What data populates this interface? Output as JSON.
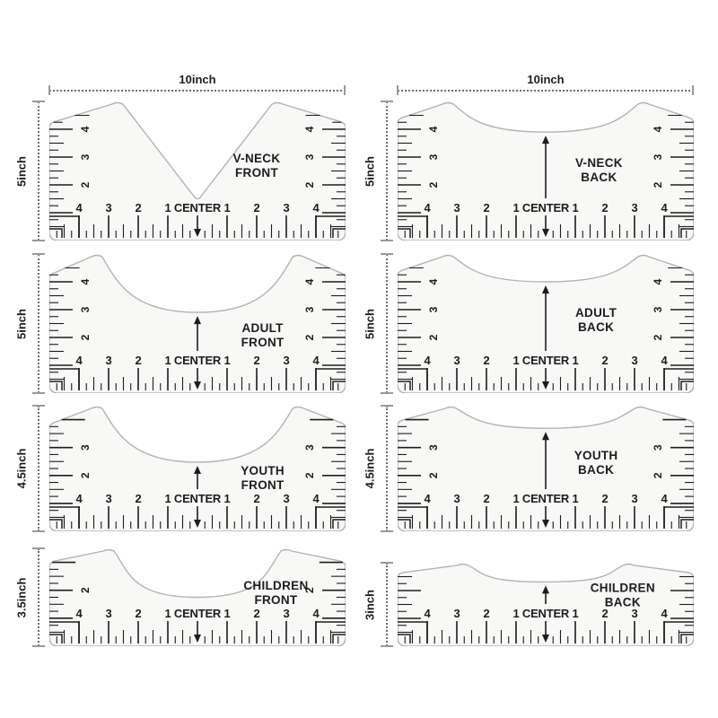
{
  "colors": {
    "background": "#ffffff",
    "ink": "#1d1d1d",
    "ruler_outline": "#b3b3b3",
    "ruler_fill": "#f8f8f7",
    "dimension_line": "#6e6e6e"
  },
  "rulers": [
    {
      "id": "v-neck-front",
      "row": 0,
      "col": 0,
      "name_lines": [
        "V-NECK",
        "FRONT"
      ],
      "width_label": "10inch",
      "height_label": "5inch",
      "height_inches": 5,
      "shape": "vneck",
      "scoop_depth": 0.72,
      "shoulder_x": 0.23,
      "corner_y": 0.16,
      "bottom_numbers": [
        "4",
        "3",
        "2",
        "1",
        "CENTER",
        "1",
        "2",
        "3",
        "4"
      ],
      "side_numbers": [
        "4",
        "3",
        "2"
      ],
      "arrow_up": false,
      "arrow_down": true,
      "label_anchor": [
        0.7,
        0.44
      ]
    },
    {
      "id": "v-neck-back",
      "row": 0,
      "col": 1,
      "name_lines": [
        "V-NECK",
        "BACK"
      ],
      "width_label": "10inch",
      "height_label": "5inch",
      "height_inches": 5,
      "shape": "scoop",
      "scoop_depth": 0.22,
      "shoulder_x": 0.17,
      "corner_y": 0.13,
      "bottom_numbers": [
        "4",
        "3",
        "2",
        "1",
        "CENTER",
        "1",
        "2",
        "3",
        "4"
      ],
      "side_numbers": [
        "4",
        "3",
        "2"
      ],
      "arrow_up": true,
      "arrow_down": true,
      "label_anchor": [
        0.68,
        0.47
      ]
    },
    {
      "id": "adult-front",
      "row": 1,
      "col": 0,
      "name_lines": [
        "ADULT",
        "FRONT"
      ],
      "height_label": "5inch",
      "height_inches": 5,
      "shape": "scoop",
      "scoop_depth": 0.42,
      "shoulder_x": 0.16,
      "corner_y": 0.15,
      "bottom_numbers": [
        "4",
        "3",
        "2",
        "1",
        "CENTER",
        "1",
        "2",
        "3",
        "4"
      ],
      "side_numbers": [
        "4",
        "3",
        "2"
      ],
      "arrow_up": true,
      "arrow_down": true,
      "label_anchor": [
        0.72,
        0.56
      ]
    },
    {
      "id": "adult-back",
      "row": 1,
      "col": 1,
      "name_lines": [
        "ADULT",
        "BACK"
      ],
      "height_label": "5inch",
      "height_inches": 5,
      "shape": "scoop",
      "scoop_depth": 0.2,
      "shoulder_x": 0.17,
      "corner_y": 0.13,
      "bottom_numbers": [
        "4",
        "3",
        "2",
        "1",
        "CENTER",
        "1",
        "2",
        "3",
        "4"
      ],
      "side_numbers": [
        "4",
        "3",
        "2"
      ],
      "arrow_up": true,
      "arrow_down": true,
      "label_anchor": [
        0.67,
        0.45
      ]
    },
    {
      "id": "youth-front",
      "row": 2,
      "col": 0,
      "name_lines": [
        "YOUTH",
        "FRONT"
      ],
      "height_label": "4.5inch",
      "height_inches": 4.5,
      "shape": "scoop",
      "scoop_depth": 0.45,
      "shoulder_x": 0.16,
      "corner_y": 0.15,
      "bottom_numbers": [
        "4",
        "3",
        "2",
        "1",
        "CENTER",
        "1",
        "2",
        "3",
        "4"
      ],
      "side_numbers": [
        "3",
        "2"
      ],
      "arrow_up": true,
      "arrow_down": true,
      "label_anchor": [
        0.72,
        0.55
      ]
    },
    {
      "id": "youth-back",
      "row": 2,
      "col": 1,
      "name_lines": [
        "YOUTH",
        "BACK"
      ],
      "height_label": "4.5inch",
      "height_inches": 4.5,
      "shape": "scoop",
      "scoop_depth": 0.18,
      "shoulder_x": 0.18,
      "corner_y": 0.13,
      "bottom_numbers": [
        "4",
        "3",
        "2",
        "1",
        "CENTER",
        "1",
        "2",
        "3",
        "4"
      ],
      "side_numbers": [
        "3",
        "2"
      ],
      "arrow_up": true,
      "arrow_down": true,
      "label_anchor": [
        0.67,
        0.43
      ]
    },
    {
      "id": "children-front",
      "row": 3,
      "col": 0,
      "name_lines": [
        "CHILDREN",
        "FRONT"
      ],
      "height_label": "3.5inch",
      "height_inches": 3.5,
      "shape": "scoop",
      "scoop_depth": 0.5,
      "shoulder_x": 0.2,
      "corner_y": 0.15,
      "bottom_numbers": [
        "4",
        "3",
        "2",
        "1",
        "CENTER",
        "1",
        "2",
        "3",
        "4"
      ],
      "side_numbers": [
        "2"
      ],
      "arrow_up": false,
      "arrow_down": true,
      "label_anchor": [
        0.765,
        0.42
      ]
    },
    {
      "id": "children-back",
      "row": 3,
      "col": 1,
      "name_lines": [
        "CHILDREN",
        "BACK"
      ],
      "height_label": "3inch",
      "height_inches": 3,
      "shape": "scoop",
      "scoop_depth": 0.23,
      "shoulder_x": 0.22,
      "corner_y": 0.14,
      "bottom_numbers": [
        "4",
        "3",
        "2",
        "1",
        "CENTER",
        "1",
        "2",
        "3",
        "4"
      ],
      "side_numbers": [],
      "arrow_up": true,
      "arrow_down": true,
      "label_anchor": [
        0.76,
        0.35
      ]
    }
  ]
}
